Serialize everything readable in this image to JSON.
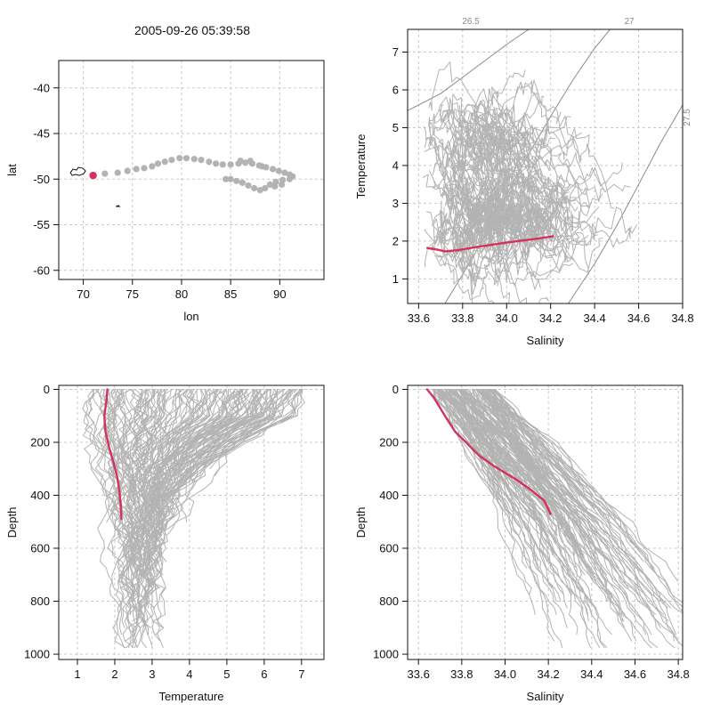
{
  "title": "2005-09-26 05:39:58",
  "colors": {
    "background": "#ffffff",
    "history": "#b3b3b3",
    "highlight": "#d6315c",
    "grid": "#c8c8c8",
    "isopycnal": "#8a8a8a"
  },
  "chart_data": [
    {
      "type": "scatter",
      "xlabel": "lon",
      "ylabel": "lat",
      "xlim": [
        67.5,
        94.5
      ],
      "ylim": [
        -61,
        -37
      ],
      "x_ticks": [
        70,
        75,
        80,
        85,
        90
      ],
      "y_ticks": [
        -40,
        -45,
        -50,
        -55,
        -60
      ],
      "grid": true,
      "series": [
        {
          "points": [
            [
              71.0,
              -49.6
            ],
            [
              72.2,
              -49.4
            ],
            [
              73.5,
              -49.3
            ],
            [
              74.5,
              -49.1
            ],
            [
              75.4,
              -48.9
            ],
            [
              76.2,
              -48.8
            ],
            [
              77.0,
              -48.6
            ],
            [
              77.6,
              -48.3
            ],
            [
              78.3,
              -48.1
            ],
            [
              79.0,
              -47.9
            ],
            [
              79.8,
              -47.7
            ],
            [
              80.5,
              -47.7
            ],
            [
              81.3,
              -47.8
            ],
            [
              82.0,
              -47.9
            ],
            [
              82.8,
              -48.1
            ],
            [
              83.5,
              -48.3
            ],
            [
              84.2,
              -48.4
            ],
            [
              85.0,
              -48.4
            ],
            [
              85.8,
              -48.3
            ],
            [
              86.5,
              -48.2
            ],
            [
              87.2,
              -48.3
            ],
            [
              87.9,
              -48.5
            ],
            [
              88.6,
              -48.7
            ],
            [
              89.3,
              -48.9
            ],
            [
              89.9,
              -49.1
            ],
            [
              90.5,
              -49.3
            ],
            [
              91.0,
              -49.5
            ],
            [
              91.3,
              -49.7
            ],
            [
              91.0,
              -50.0
            ],
            [
              90.3,
              -50.1
            ],
            [
              89.6,
              -50.3
            ],
            [
              89.0,
              -50.6
            ],
            [
              88.5,
              -51.0
            ],
            [
              88.0,
              -51.2
            ],
            [
              87.4,
              -51.0
            ],
            [
              86.8,
              -50.7
            ],
            [
              86.2,
              -50.4
            ],
            [
              85.6,
              -50.2
            ],
            [
              85.0,
              -50.0
            ],
            [
              86.0,
              -48.0
            ],
            [
              87.0,
              -48.0
            ],
            [
              88.2,
              -48.6
            ],
            [
              89.5,
              -50.8
            ],
            [
              90.2,
              -50.6
            ],
            [
              84.5,
              -50.0
            ]
          ]
        }
      ],
      "highlight_point": [
        71.0,
        -49.6
      ],
      "coast": {
        "heard": {
          "lon": 69.5,
          "lat": -49.2
        },
        "islet": {
          "lon": 73.5,
          "lat": -53.0
        }
      }
    },
    {
      "type": "line",
      "xlabel": "Salinity",
      "ylabel": "Temperature",
      "xlim": [
        33.55,
        34.8
      ],
      "ylim": [
        0.35,
        7.6
      ],
      "x_ticks": [
        "33.6",
        "33.8",
        "34.0",
        "34.2",
        "34.4",
        "34.6",
        "34.8"
      ],
      "y_ticks": [
        1,
        2,
        3,
        4,
        5,
        6,
        7
      ],
      "grid": true,
      "isopycnals": [
        {
          "label": "26.5",
          "points": [
            [
              33.55,
              5.45
            ],
            [
              33.7,
              5.9
            ],
            [
              33.85,
              6.55
            ],
            [
              34.0,
              7.2
            ],
            [
              34.1,
              7.6
            ]
          ]
        },
        {
          "label": "27",
          "points": [
            [
              33.72,
              0.35
            ],
            [
              33.85,
              1.6
            ],
            [
              34.0,
              3.25
            ],
            [
              34.1,
              4.3
            ],
            [
              34.2,
              5.3
            ],
            [
              34.3,
              6.25
            ],
            [
              34.4,
              7.1
            ],
            [
              34.47,
              7.6
            ]
          ]
        },
        {
          "label": "27.5",
          "points": [
            [
              34.28,
              0.35
            ],
            [
              34.4,
              1.4
            ],
            [
              34.5,
              2.4
            ],
            [
              34.6,
              3.5
            ],
            [
              34.7,
              4.6
            ],
            [
              34.8,
              5.6
            ]
          ]
        }
      ],
      "highlight": {
        "x": [
          33.64,
          33.68,
          33.72,
          33.78,
          33.85,
          33.95,
          34.05,
          34.12,
          34.18,
          34.21
        ],
        "y": [
          1.82,
          1.78,
          1.73,
          1.76,
          1.83,
          1.92,
          2.0,
          2.05,
          2.1,
          2.13
        ]
      }
    },
    {
      "type": "line",
      "xlabel": "Temperature",
      "ylabel": "Depth",
      "xlim": [
        0.5,
        7.6
      ],
      "ylim": [
        1020,
        -15
      ],
      "x_ticks": [
        1,
        2,
        3,
        4,
        5,
        6,
        7
      ],
      "y_ticks": [
        0,
        200,
        400,
        600,
        800,
        1000
      ],
      "grid": true,
      "highlight": {
        "x": [
          1.8,
          1.78,
          1.72,
          1.75,
          1.85,
          1.95,
          2.05,
          2.12,
          2.16,
          2.18
        ],
        "y": [
          0,
          40,
          100,
          160,
          220,
          270,
          320,
          380,
          440,
          490
        ]
      }
    },
    {
      "type": "line",
      "xlabel": "Salinity",
      "ylabel": "Depth",
      "xlim": [
        33.55,
        34.82
      ],
      "ylim": [
        1020,
        -15
      ],
      "x_ticks": [
        "33.6",
        "33.8",
        "34.0",
        "34.2",
        "34.4",
        "34.6",
        "34.8"
      ],
      "y_ticks": [
        0,
        200,
        400,
        600,
        800,
        1000
      ],
      "grid": true,
      "highlight": {
        "x": [
          33.64,
          33.67,
          33.7,
          33.73,
          33.77,
          33.82,
          33.88,
          33.95,
          34.05,
          34.12,
          34.18,
          34.21
        ],
        "y": [
          0,
          30,
          70,
          110,
          160,
          200,
          250,
          290,
          340,
          380,
          420,
          470
        ]
      }
    }
  ]
}
